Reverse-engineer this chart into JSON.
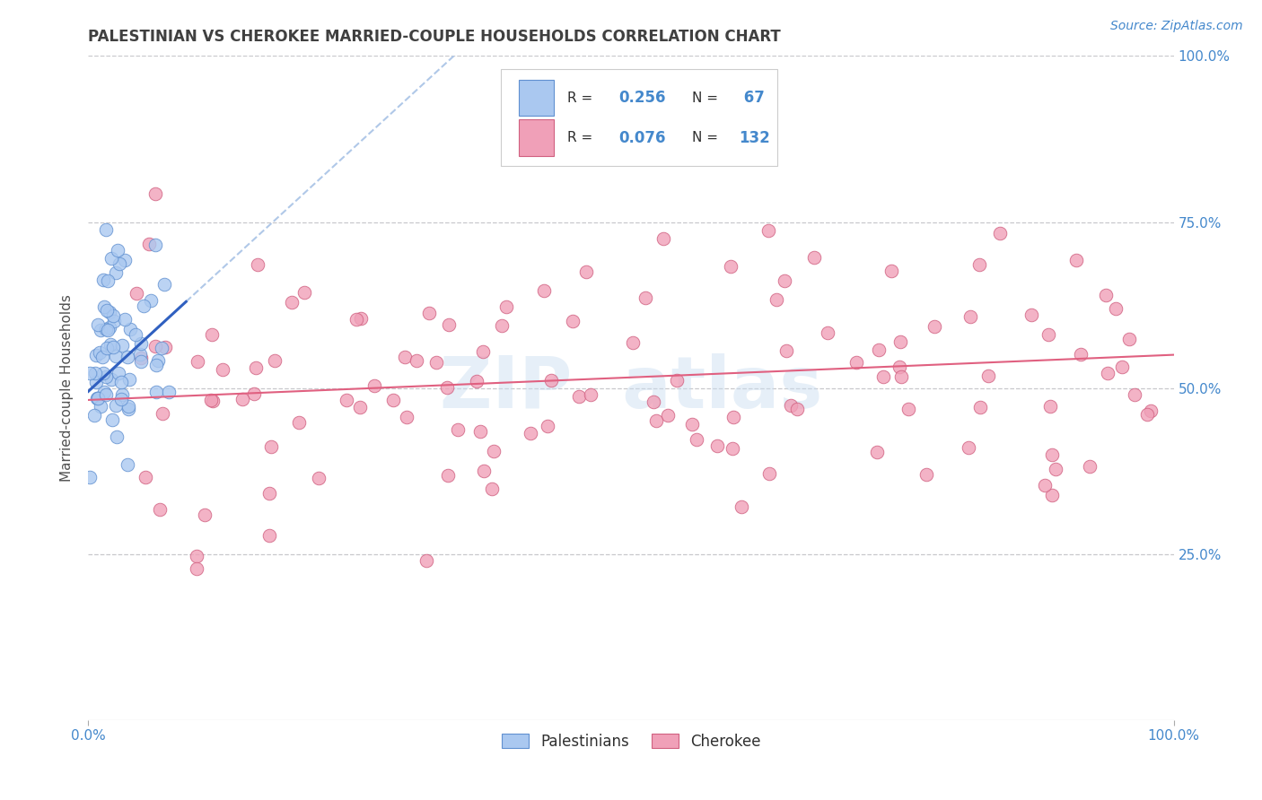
{
  "title": "PALESTINIAN VS CHEROKEE MARRIED-COUPLE HOUSEHOLDS CORRELATION CHART",
  "source": "Source: ZipAtlas.com",
  "ylabel": "Married-couple Households",
  "xlim": [
    0,
    1.0
  ],
  "ylim": [
    0,
    1.0
  ],
  "ytick_positions": [
    0.25,
    0.5,
    0.75,
    1.0
  ],
  "ytick_labels": [
    "25.0%",
    "50.0%",
    "75.0%",
    "100.0%"
  ],
  "xtick_positions": [
    0.0,
    1.0
  ],
  "xtick_labels": [
    "0.0%",
    "100.0%"
  ],
  "pal_R": "0.256",
  "pal_N": "67",
  "cher_R": "0.076",
  "cher_N": "132",
  "pal_color": "#aac8f0",
  "pal_edge": "#6090d0",
  "cher_color": "#f0a0b8",
  "cher_edge": "#d06080",
  "pal_line_color": "#3060c0",
  "pal_dash_color": "#b0c8e8",
  "cher_line_color": "#e06080",
  "grid_color": "#c8c8cc",
  "bg_color": "#ffffff",
  "title_color": "#404040",
  "right_tick_color": "#4488cc",
  "watermark_color": "#c8ddf0",
  "watermark_alpha": 0.45,
  "legend_box_color": "#ffffff",
  "legend_box_edge": "#cccccc",
  "legend_text_color": "#303030",
  "legend_val_color": "#4488cc",
  "source_color": "#4488cc",
  "bottom_legend_text_color": "#303030"
}
